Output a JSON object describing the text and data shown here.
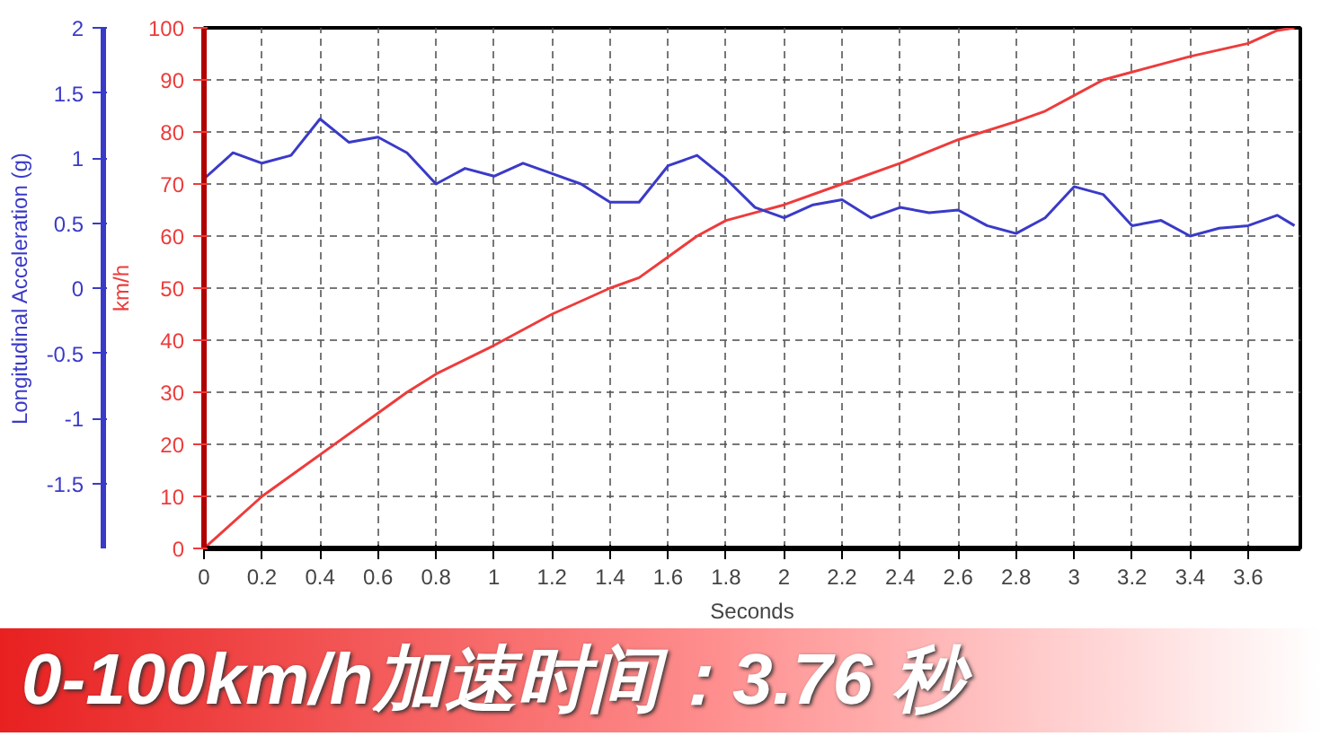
{
  "chart_data": {
    "type": "line",
    "title": "0-100km/h加速时间：3.76 秒",
    "xlabel": "Seconds",
    "ylabel": "km/h",
    "y2label": "Longitudinal Acceleration (g)",
    "xlim": [
      0,
      3.78
    ],
    "xticks": [
      0,
      0.2,
      0.4,
      0.6,
      0.8,
      1,
      1.2,
      1.4,
      1.6,
      1.8,
      2,
      2.2,
      2.4,
      2.6,
      2.8,
      3,
      3.2,
      3.4,
      3.6
    ],
    "ylim": [
      0,
      100
    ],
    "yticks": [
      0,
      10,
      20,
      30,
      40,
      50,
      60,
      70,
      80,
      90,
      100
    ],
    "y2lim": [
      -2,
      2
    ],
    "y2ticks": [
      -1.5,
      -1,
      -0.5,
      0,
      0.5,
      1,
      1.5,
      2
    ],
    "grid": true,
    "line_style": "solid",
    "marker": "none",
    "series": [
      {
        "color": "#ee3b3b",
        "x": [
          0,
          0.2,
          0.4,
          0.6,
          0.7,
          0.8,
          1.0,
          1.2,
          1.4,
          1.5,
          1.6,
          1.7,
          1.8,
          1.9,
          2.0,
          2.2,
          2.4,
          2.6,
          2.8,
          2.9,
          3.0,
          3.1,
          3.2,
          3.4,
          3.6,
          3.7,
          3.76
        ],
        "values": [
          0,
          10,
          18,
          26,
          30,
          33.5,
          39,
          45,
          50,
          52,
          56,
          60,
          63,
          64.5,
          66,
          70,
          74,
          78.5,
          82,
          84,
          87,
          90,
          91.5,
          94.5,
          97,
          99.5,
          100
        ]
      },
      {
        "color": "#3a3ac8",
        "axis": "y2",
        "x": [
          0,
          0.1,
          0.2,
          0.3,
          0.4,
          0.5,
          0.6,
          0.7,
          0.8,
          0.9,
          1.0,
          1.1,
          1.2,
          1.3,
          1.4,
          1.5,
          1.6,
          1.7,
          1.8,
          1.9,
          2.0,
          2.1,
          2.2,
          2.3,
          2.4,
          2.5,
          2.6,
          2.7,
          2.8,
          2.9,
          3.0,
          3.1,
          3.2,
          3.3,
          3.4,
          3.5,
          3.6,
          3.7,
          3.76
        ],
        "values": [
          0.84,
          1.04,
          0.96,
          1.02,
          1.3,
          1.12,
          1.16,
          1.04,
          0.8,
          0.92,
          0.86,
          0.96,
          0.88,
          0.8,
          0.66,
          0.66,
          0.94,
          1.02,
          0.84,
          0.62,
          0.54,
          0.64,
          0.68,
          0.54,
          0.62,
          0.58,
          0.6,
          0.48,
          0.42,
          0.54,
          0.78,
          0.72,
          0.48,
          0.52,
          0.4,
          0.46,
          0.48,
          0.56,
          0.48
        ]
      }
    ]
  }
}
